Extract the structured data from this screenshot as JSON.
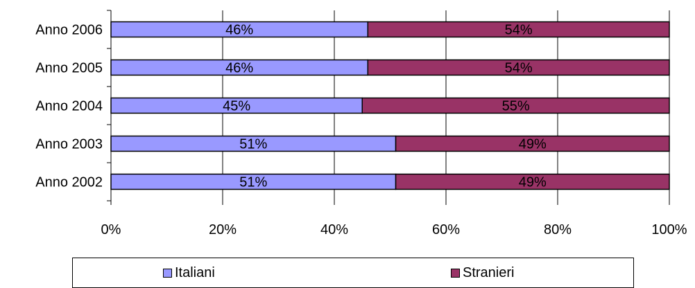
{
  "chart_data": {
    "type": "bar",
    "orientation": "horizontal",
    "stacked": "percent",
    "categories": [
      "Anno 2006",
      "Anno 2005",
      "Anno 2004",
      "Anno 2003",
      "Anno 2002"
    ],
    "series": [
      {
        "name": "Italiani",
        "color": "#9999ff",
        "values": [
          46,
          46,
          45,
          51,
          51
        ],
        "labels": [
          "46%",
          "46%",
          "45%",
          "51%",
          "51%"
        ]
      },
      {
        "name": "Stranieri",
        "color": "#993366",
        "values": [
          54,
          54,
          55,
          49,
          49
        ],
        "labels": [
          "54%",
          "54%",
          "55%",
          "49%",
          "49%"
        ]
      }
    ],
    "xlim": [
      0,
      100
    ],
    "xticks": [
      "0%",
      "20%",
      "40%",
      "60%",
      "80%",
      "100%"
    ],
    "grid": true,
    "legend_position": "bottom"
  }
}
